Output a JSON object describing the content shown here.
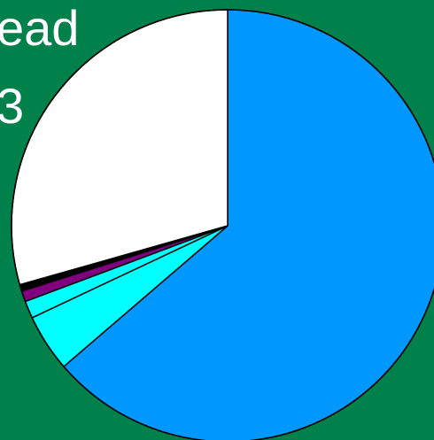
{
  "background_text": {
    "line1": "ead",
    "line2": "3"
  },
  "colors": {
    "background": "#00804a",
    "outline": "#000000",
    "text": "#ffffff"
  },
  "chart_data": {
    "type": "pie",
    "title": "",
    "legend": "none",
    "start_angle_deg": 0,
    "direction": "clockwise",
    "slices": [
      {
        "label": "",
        "value": 63.7,
        "color": "#0097ff"
      },
      {
        "label": "",
        "value": 4.3,
        "color": "#00ffff"
      },
      {
        "label": "",
        "value": 1.3,
        "color": "#00ffff"
      },
      {
        "label": "",
        "value": 0.8,
        "color": "#800080"
      },
      {
        "label": "",
        "value": 0.5,
        "color": "#000000"
      },
      {
        "label": "",
        "value": 29.4,
        "color": "#ffffff"
      }
    ]
  }
}
